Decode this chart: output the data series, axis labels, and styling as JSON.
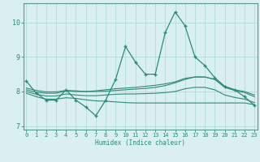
{
  "xlabel": "Humidex (Indice chaleur)",
  "x": [
    0,
    1,
    2,
    3,
    4,
    5,
    6,
    7,
    8,
    9,
    10,
    11,
    12,
    13,
    14,
    15,
    16,
    17,
    18,
    19,
    20,
    21,
    22,
    23
  ],
  "main_y": [
    8.3,
    7.95,
    7.75,
    7.75,
    8.05,
    7.75,
    7.55,
    7.3,
    7.75,
    8.35,
    9.3,
    8.85,
    8.5,
    8.5,
    9.7,
    10.3,
    9.9,
    9.0,
    8.75,
    8.4,
    8.15,
    8.05,
    7.85,
    7.6
  ],
  "line2_y": [
    8.05,
    7.98,
    7.95,
    7.95,
    8.02,
    8.0,
    8.0,
    8.02,
    8.05,
    8.08,
    8.1,
    8.12,
    8.15,
    8.18,
    8.22,
    8.28,
    8.38,
    8.42,
    8.42,
    8.35,
    8.15,
    8.05,
    8.0,
    7.9
  ],
  "line3_y": [
    8.0,
    7.92,
    7.87,
    7.87,
    7.93,
    7.9,
    7.88,
    7.88,
    7.9,
    7.92,
    7.93,
    7.93,
    7.94,
    7.95,
    7.97,
    8.0,
    8.08,
    8.12,
    8.12,
    8.05,
    7.9,
    7.83,
    7.78,
    7.68
  ],
  "line4_y": [
    7.95,
    7.85,
    7.78,
    7.78,
    7.82,
    7.8,
    7.76,
    7.73,
    7.72,
    7.7,
    7.68,
    7.67,
    7.67,
    7.67,
    7.67,
    7.67,
    7.67,
    7.67,
    7.67,
    7.67,
    7.67,
    7.67,
    7.67,
    7.62
  ],
  "line5_y": [
    8.1,
    8.03,
    7.99,
    7.99,
    8.03,
    8.02,
    8.0,
    8.0,
    8.01,
    8.03,
    8.05,
    8.07,
    8.09,
    8.12,
    8.17,
    8.25,
    8.35,
    8.42,
    8.42,
    8.35,
    8.12,
    8.03,
    7.97,
    7.85
  ],
  "color": "#2e8b7a",
  "bg_color": "#d9eff0",
  "grid_color": "#b8dede",
  "ylim": [
    6.9,
    10.55
  ],
  "xlim": [
    -0.3,
    23.3
  ],
  "yticks": [
    7,
    8,
    9,
    10
  ],
  "xticks": [
    0,
    1,
    2,
    3,
    4,
    5,
    6,
    7,
    8,
    9,
    10,
    11,
    12,
    13,
    14,
    15,
    16,
    17,
    18,
    19,
    20,
    21,
    22,
    23
  ]
}
